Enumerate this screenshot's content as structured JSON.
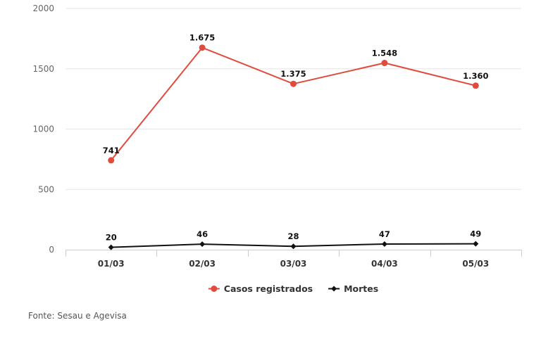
{
  "chart_data": {
    "type": "line",
    "categories": [
      "01/03",
      "02/03",
      "03/03",
      "04/03",
      "05/03"
    ],
    "series": [
      {
        "name": "Casos registrados",
        "values": [
          741,
          1675,
          1375,
          1548,
          1360
        ],
        "labels": [
          "741",
          "1.675",
          "1.375",
          "1.548",
          "1.360"
        ],
        "color": "#e14b3d",
        "marker": "circle"
      },
      {
        "name": "Mortes",
        "values": [
          20,
          46,
          28,
          47,
          49
        ],
        "labels": [
          "20",
          "46",
          "28",
          "47",
          "49"
        ],
        "color": "#111111",
        "marker": "diamond"
      }
    ],
    "ylim": [
      0,
      2000
    ],
    "yticks": [
      0,
      500,
      1000,
      1500,
      2000
    ],
    "grid": true,
    "legend_position": "bottom"
  },
  "source": "Fonte: Sesau e Agevisa"
}
